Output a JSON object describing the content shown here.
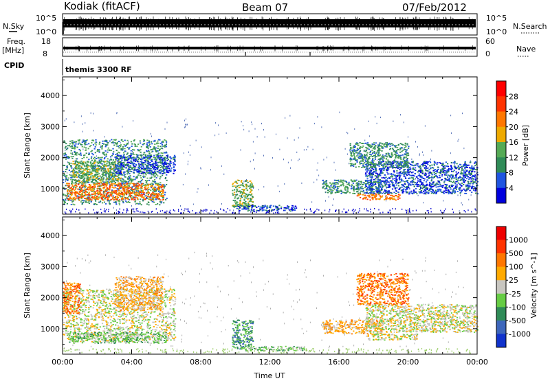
{
  "header": {
    "station": "Kodiak (fitACF)",
    "beam": "Beam 07",
    "date": "07/Feb/2012"
  },
  "top_panels": {
    "nsky_label": "N.Sky",
    "nsky_ticks": [
      "10^5",
      "10^0"
    ],
    "nsearch_label": "N.Search",
    "nsearch_ticks": [
      "10^5",
      "10^0"
    ],
    "freq_label": "Freq.",
    "freq_unit": "[MHz]",
    "freq_ticks": [
      "18",
      "8"
    ],
    "nave_label": "Nave",
    "nave_ticks": [
      "60",
      "0"
    ],
    "cpid_label": "CPID",
    "cpid_text": "themis 3300 RF"
  },
  "chart_data": [
    {
      "type": "heatmap",
      "name": "power",
      "ylabel": "Slant Range [km]",
      "yticks": [
        1000,
        2000,
        3000,
        4000
      ],
      "ylim": [
        180,
        4600
      ],
      "xlim": [
        0,
        24
      ],
      "colorbar": {
        "label": "Power [dB]",
        "ticks": [
          "28",
          "24",
          "20",
          "16",
          "12",
          "8",
          "4"
        ],
        "colors": [
          "#0000dd",
          "#1f55e0",
          "#2f8b57",
          "#55aa55",
          "#eeaa00",
          "#ff7700",
          "#ff3300",
          "#ff0000"
        ]
      },
      "scatter_regions": [
        {
          "t0": 0.0,
          "t1": 6.0,
          "r0": 500,
          "r1": 2600,
          "level": 2
        },
        {
          "t0": 0.2,
          "t1": 5.8,
          "r0": 650,
          "r1": 1200,
          "level": 5
        },
        {
          "t0": 0.5,
          "t1": 3.5,
          "r0": 1200,
          "r1": 1900,
          "level": 3
        },
        {
          "t0": 3.0,
          "t1": 6.5,
          "r0": 1500,
          "r1": 2100,
          "level": 1
        },
        {
          "t0": 9.8,
          "t1": 11.0,
          "r0": 400,
          "r1": 1300,
          "level": 3
        },
        {
          "t0": 10.0,
          "t1": 13.5,
          "r0": 300,
          "r1": 480,
          "level": 1
        },
        {
          "t0": 15.0,
          "t1": 18.5,
          "r0": 850,
          "r1": 1300,
          "level": 2
        },
        {
          "t0": 17.5,
          "t1": 24.0,
          "r0": 850,
          "r1": 1900,
          "level": 1
        },
        {
          "t0": 16.6,
          "t1": 20.0,
          "r0": 1700,
          "r1": 2500,
          "level": 2
        },
        {
          "t0": 17.0,
          "t1": 19.5,
          "r0": 650,
          "r1": 850,
          "level": 5
        }
      ]
    },
    {
      "type": "heatmap",
      "name": "velocity",
      "xlabel": "Time UT",
      "ylabel": "Slant Range [km]",
      "yticks": [
        1000,
        2000,
        3000,
        4000
      ],
      "ylim": [
        180,
        4600
      ],
      "xlim": [
        0,
        24
      ],
      "xticks": [
        "00:00",
        "04:00",
        "08:00",
        "12:00",
        "16:00",
        "20:00",
        "00:00"
      ],
      "colorbar": {
        "label": "Velocity [m s^-1]",
        "ticks": [
          "1000",
          "500",
          "100",
          "25",
          "-25",
          "-100",
          "-500",
          "-1000"
        ],
        "colors": [
          "#1133cc",
          "#3d66bb",
          "#2f8b57",
          "#66cc44",
          "#c8c6c0",
          "#ffaa00",
          "#ff7700",
          "#ff3300",
          "#ee0000"
        ]
      },
      "scatter_regions": [
        {
          "t0": 0.0,
          "t1": 6.5,
          "r0": 600,
          "r1": 2300,
          "level": 4
        },
        {
          "t0": 0.3,
          "t1": 6.0,
          "r0": 550,
          "r1": 900,
          "level": 3
        },
        {
          "t0": 3.0,
          "t1": 5.8,
          "r0": 1600,
          "r1": 2700,
          "level": 5
        },
        {
          "t0": 0.0,
          "t1": 1.0,
          "r0": 1500,
          "r1": 2500,
          "level": 6
        },
        {
          "t0": 9.8,
          "t1": 11.0,
          "r0": 350,
          "r1": 1300,
          "level": 2
        },
        {
          "t0": 10.5,
          "t1": 14.0,
          "r0": 300,
          "r1": 450,
          "level": 3
        },
        {
          "t0": 15.0,
          "t1": 18.5,
          "r0": 850,
          "r1": 1300,
          "level": 5
        },
        {
          "t0": 17.5,
          "t1": 24.0,
          "r0": 900,
          "r1": 1800,
          "level": 4
        },
        {
          "t0": 17.0,
          "t1": 20.0,
          "r0": 1800,
          "r1": 2800,
          "level": 6
        },
        {
          "t0": 17.5,
          "t1": 20.5,
          "r0": 650,
          "r1": 850,
          "level": 4
        }
      ]
    }
  ]
}
